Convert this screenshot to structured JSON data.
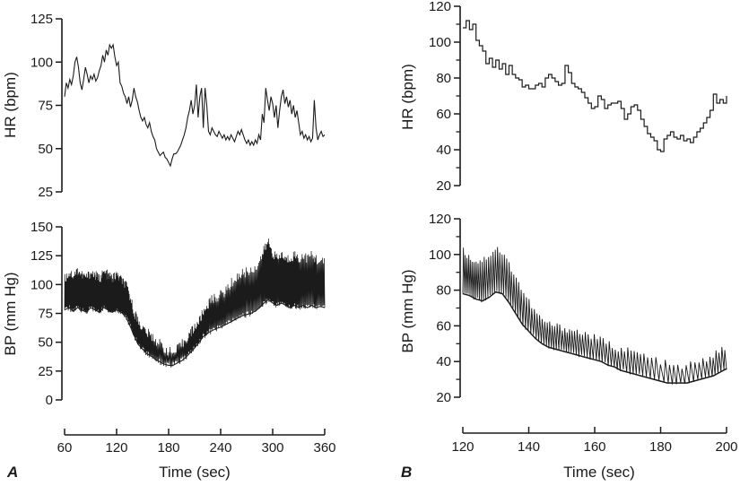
{
  "figure": {
    "panel_a_label": "A",
    "panel_b_label": "B",
    "time_axis_label": "Time (sec)",
    "hr_axis_label": "HR (bpm)",
    "bp_axis_label": "BP (mm Hg)",
    "colors": {
      "trace": "#1b1b1b",
      "axis": "#1a1a1a",
      "text": "#1a1a1a",
      "background": "#ffffff"
    }
  },
  "chart_data": [
    {
      "id": "panel-a-hr",
      "panel": "A",
      "position": "top",
      "type": "line",
      "ylabel": "HR (bpm)",
      "x_range": [
        60,
        360
      ],
      "y_range": [
        25,
        125
      ],
      "y_ticks": [
        25,
        50,
        75,
        100,
        125
      ],
      "grid": false,
      "series": {
        "name": "heart-rate-a",
        "t_start": 60,
        "t_step": 2,
        "values": [
          80,
          88,
          85,
          90,
          87,
          92,
          100,
          103,
          97,
          88,
          84,
          90,
          97,
          93,
          88,
          92,
          90,
          93,
          89,
          91,
          95,
          98,
          104,
          100,
          107,
          104,
          110,
          108,
          110,
          103,
          98,
          100,
          88,
          86,
          82,
          80,
          76,
          80,
          74,
          78,
          85,
          80,
          77,
          72,
          68,
          66,
          68,
          64,
          62,
          65,
          60,
          57,
          55,
          50,
          48,
          46,
          47,
          48,
          45,
          44,
          42,
          40,
          44,
          47,
          47,
          48,
          50,
          52,
          55,
          58,
          62,
          68,
          72,
          78,
          70,
          75,
          87,
          68,
          80,
          85,
          62,
          85,
          75,
          60,
          58,
          62,
          60,
          58,
          57,
          60,
          58,
          56,
          58,
          55,
          57,
          55,
          58,
          56,
          54,
          57,
          60,
          58,
          61,
          58,
          55,
          53,
          55,
          52,
          54,
          52,
          55,
          53,
          58,
          55,
          70,
          65,
          85,
          78,
          72,
          80,
          76,
          68,
          75,
          62,
          72,
          80,
          84,
          76,
          80,
          74,
          78,
          70,
          75,
          68,
          72,
          65,
          58,
          60,
          56,
          58,
          55,
          57,
          54,
          56,
          78,
          62,
          55,
          58,
          60,
          57,
          58
        ]
      }
    },
    {
      "id": "panel-a-bp",
      "panel": "A",
      "position": "bottom",
      "type": "pulsatile-envelope",
      "ylabel": "BP (mm Hg)",
      "xlabel": "Time (sec)",
      "x_range": [
        60,
        360
      ],
      "y_range": [
        0,
        150
      ],
      "x_ticks": [
        60,
        120,
        180,
        240,
        300,
        360
      ],
      "y_ticks": [
        0,
        25,
        50,
        75,
        100,
        125,
        150
      ],
      "grid": false,
      "envelope": {
        "name": "blood-pressure-a",
        "t_start": 60,
        "t_step": 5,
        "diastolic": [
          78,
          80,
          77,
          80,
          78,
          76,
          80,
          78,
          76,
          80,
          78,
          76,
          78,
          76,
          73,
          65,
          56,
          48,
          44,
          40,
          38,
          35,
          33,
          31,
          30,
          30,
          32,
          34,
          37,
          41,
          45,
          50,
          55,
          58,
          60,
          62,
          63,
          65,
          67,
          69,
          71,
          73,
          74,
          75,
          77,
          80,
          84,
          87,
          84,
          82,
          84,
          82,
          80,
          82,
          80,
          82,
          80,
          82,
          80,
          81,
          80
        ],
        "systolic": [
          105,
          110,
          108,
          112,
          108,
          106,
          110,
          108,
          105,
          110,
          108,
          105,
          108,
          104,
          100,
          90,
          76,
          68,
          62,
          58,
          55,
          52,
          48,
          45,
          42,
          40,
          44,
          48,
          53,
          58,
          63,
          68,
          76,
          83,
          87,
          89,
          91,
          94,
          99,
          104,
          107,
          110,
          111,
          112,
          115,
          121,
          130,
          137,
          127,
          122,
          126,
          121,
          123,
          126,
          122,
          125,
          123,
          125,
          122,
          120,
          118
        ]
      }
    },
    {
      "id": "panel-b-hr",
      "panel": "B",
      "position": "top",
      "type": "staircase",
      "ylabel": "HR (bpm)",
      "x_range": [
        120,
        200
      ],
      "y_range": [
        20,
        120
      ],
      "y_ticks": [
        20,
        40,
        60,
        80,
        100,
        120
      ],
      "y_minor_ticks": [
        30,
        50,
        70,
        90,
        110
      ],
      "grid": false,
      "series": {
        "name": "heart-rate-b",
        "t_start": 120,
        "t_step": 1,
        "values": [
          108,
          112,
          107,
          110,
          101,
          98,
          95,
          88,
          91,
          86,
          90,
          85,
          88,
          82,
          87,
          82,
          80,
          79,
          75,
          76,
          74,
          74,
          76,
          77,
          75,
          80,
          82,
          80,
          78,
          76,
          77,
          87,
          83,
          77,
          75,
          74,
          72,
          69,
          66,
          63,
          64,
          70,
          68,
          63,
          65,
          66,
          66,
          67,
          63,
          57,
          60,
          64,
          65,
          62,
          57,
          53,
          49,
          47,
          45,
          40,
          39,
          46,
          48,
          50,
          47,
          46,
          48,
          45,
          46,
          44,
          47,
          50,
          52,
          55,
          58,
          62,
          71,
          66,
          68,
          66,
          70
        ]
      }
    },
    {
      "id": "panel-b-bp",
      "panel": "B",
      "position": "bottom",
      "type": "pulsatile-envelope",
      "ylabel": "BP (mm Hg)",
      "xlabel": "Time (sec)",
      "x_range": [
        120,
        200
      ],
      "y_range": [
        20,
        120
      ],
      "x_ticks": [
        120,
        140,
        160,
        180,
        200
      ],
      "y_ticks": [
        20,
        40,
        60,
        80,
        100,
        120
      ],
      "y_minor_ticks": [
        30,
        50,
        70,
        90,
        110
      ],
      "grid": false,
      "envelope": {
        "name": "blood-pressure-b",
        "t_start": 120,
        "t_step": 2,
        "diastolic": [
          78,
          77,
          75,
          74,
          76,
          79,
          78,
          73,
          67,
          61,
          57,
          53,
          50,
          48,
          47,
          46,
          45,
          44,
          43,
          42,
          41,
          40,
          38,
          37,
          35,
          34,
          33,
          32,
          31,
          30,
          29,
          28,
          28,
          28,
          28,
          29,
          30,
          31,
          32,
          34,
          36
        ],
        "systolic": [
          102,
          98,
          96,
          97,
          100,
          104,
          100,
          94,
          87,
          79,
          73,
          67,
          63,
          61,
          60,
          59,
          58,
          57,
          56,
          55,
          53,
          52,
          50,
          48,
          47,
          46,
          45,
          44,
          42,
          41,
          40,
          38,
          37,
          37,
          38,
          39,
          40,
          42,
          44,
          46,
          49
        ]
      }
    }
  ]
}
